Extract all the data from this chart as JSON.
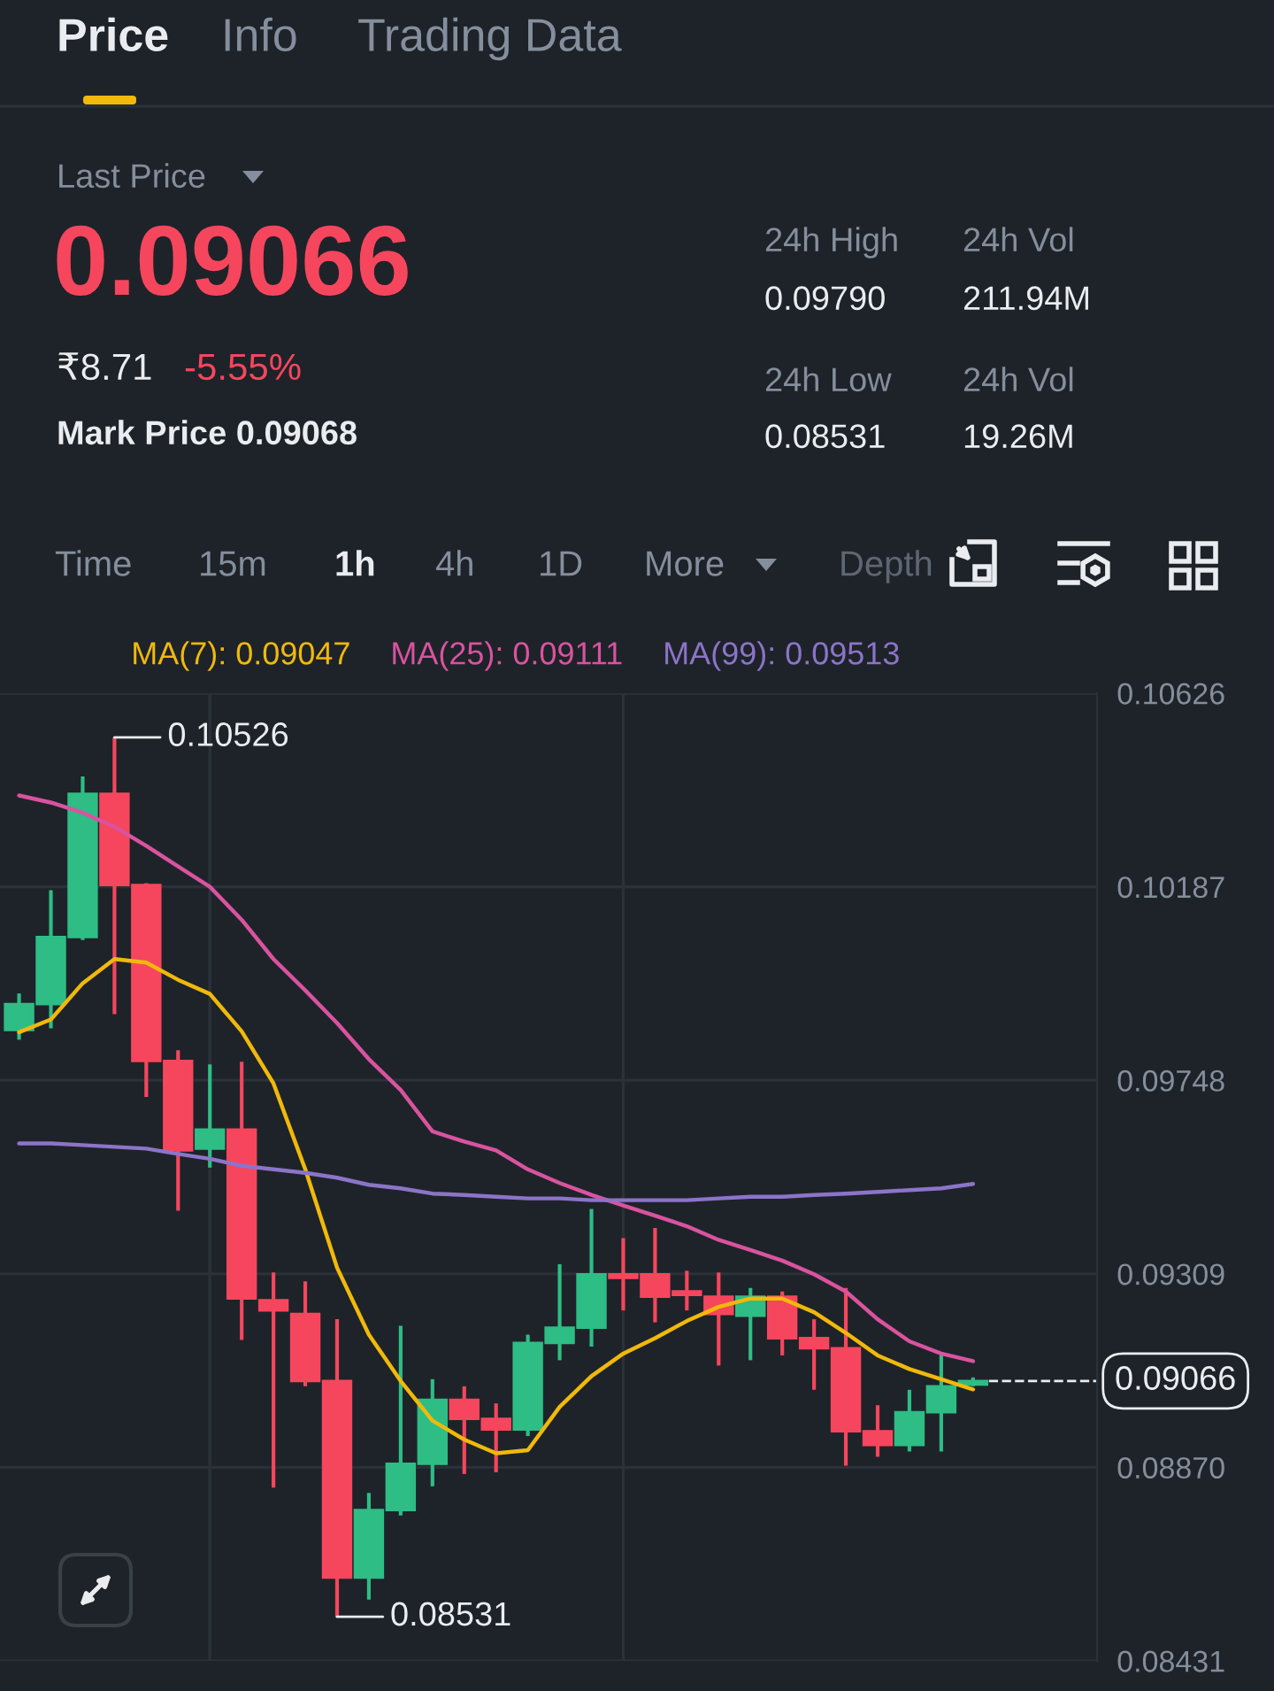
{
  "chart_data": {
    "type": "candlestick",
    "categories": [
      null,
      null,
      null,
      null,
      null,
      null,
      null,
      null,
      null,
      null,
      null,
      null,
      null,
      null,
      null,
      null,
      null,
      null,
      null,
      null,
      null,
      null,
      null,
      null,
      null,
      null,
      null,
      null,
      null,
      null,
      null
    ],
    "ohlc": [
      [
        0.09862,
        0.09945,
        0.0984,
        0.09921
      ],
      [
        0.09921,
        0.10179,
        0.09866,
        0.10073
      ],
      [
        0.10073,
        0.10437,
        0.10066,
        0.10398
      ],
      [
        0.10398,
        0.10526,
        0.09898,
        0.10191
      ],
      [
        0.10191,
        0.10195,
        0.0971,
        0.09792
      ],
      [
        0.09792,
        0.09816,
        0.09452,
        0.09589
      ],
      [
        0.09593,
        0.09784,
        0.0955,
        0.09636
      ],
      [
        0.09636,
        0.0979,
        0.09159,
        0.09253
      ],
      [
        0.09249,
        0.09312,
        0.08824,
        0.09226
      ],
      [
        0.09218,
        0.09292,
        0.09054,
        0.09066
      ],
      [
        0.09066,
        0.09206,
        0.08531,
        0.0862
      ],
      [
        0.0862,
        0.08812,
        0.0857,
        0.08773
      ],
      [
        0.08773,
        0.09191,
        0.08761,
        0.08878
      ],
      [
        0.08878,
        0.0907,
        0.08827,
        0.09023
      ],
      [
        0.09023,
        0.09054,
        0.08855,
        0.0898
      ],
      [
        0.0898,
        0.09015,
        0.08859,
        0.08956
      ],
      [
        0.08956,
        0.09171,
        0.08941,
        0.09152
      ],
      [
        0.09152,
        0.09331,
        0.09113,
        0.09187
      ],
      [
        0.09187,
        0.09456,
        0.09144,
        0.09308
      ],
      [
        0.09308,
        0.0939,
        0.09226,
        0.093
      ],
      [
        0.09308,
        0.09413,
        0.09199,
        0.09257
      ],
      [
        0.09269,
        0.09316,
        0.09226,
        0.09261
      ],
      [
        0.09257,
        0.09312,
        0.09101,
        0.09218
      ],
      [
        0.09214,
        0.09277,
        0.09113,
        0.09257
      ],
      [
        0.09257,
        0.09269,
        0.09124,
        0.09163
      ],
      [
        0.09163,
        0.09206,
        0.09046,
        0.0914
      ],
      [
        0.0914,
        0.09277,
        0.08874,
        0.08952
      ],
      [
        0.08952,
        0.09011,
        0.08894,
        0.08921
      ],
      [
        0.08921,
        0.09046,
        0.08906,
        0.08995
      ],
      [
        0.08995,
        0.09124,
        0.08906,
        0.09054
      ],
      [
        0.09058,
        0.09074,
        0.09054,
        0.09066
      ]
    ],
    "colors": [
      "#2ebd85",
      "#2ebd85",
      "#2ebd85",
      "#f6465d",
      "#f6465d",
      "#f6465d",
      "#2ebd85",
      "#f6465d",
      "#f6465d",
      "#f6465d",
      "#f6465d",
      "#2ebd85",
      "#2ebd85",
      "#2ebd85",
      "#f6465d",
      "#f6465d",
      "#2ebd85",
      "#2ebd85",
      "#2ebd85",
      "#f6465d",
      "#f6465d",
      "#f6465d",
      "#f6465d",
      "#2ebd85",
      "#f6465d",
      "#f6465d",
      "#f6465d",
      "#f6465d",
      "#2ebd85",
      "#2ebd85",
      "#2ebd85"
    ],
    "series": [
      {
        "name": "MA(7): 0.09047",
        "type": "line",
        "color": "#f0b90b",
        "values": [
          0.09857,
          0.09886,
          0.09968,
          0.10023,
          0.10015,
          0.09976,
          0.09944,
          0.09859,
          0.09741,
          0.09546,
          0.09323,
          0.09171,
          0.09066,
          0.08976,
          0.08933,
          0.08902,
          0.08909,
          0.09007,
          0.09077,
          0.09128,
          0.09163,
          0.09202,
          0.09234,
          0.09253,
          0.09253,
          0.09222,
          0.09175,
          0.09124,
          0.09093,
          0.0907,
          0.09047
        ]
      },
      {
        "name": "MA(25): 0.09111",
        "type": "line",
        "color": "#d9539f",
        "values": [
          0.10394,
          0.10378,
          0.10355,
          0.10323,
          0.1028,
          0.10233,
          0.10187,
          0.10112,
          0.10023,
          0.09952,
          0.09878,
          0.09796,
          0.09726,
          0.09632,
          0.09609,
          0.09589,
          0.09546,
          0.09515,
          0.09488,
          0.09464,
          0.09441,
          0.09417,
          0.09386,
          0.09363,
          0.09339,
          0.09308,
          0.09269,
          0.09206,
          0.09156,
          0.09128,
          0.09111
        ]
      },
      {
        "name": "MA(99): 0.09513",
        "type": "line",
        "color": "#8c74c9",
        "values": [
          0.09605,
          0.09605,
          0.09601,
          0.09597,
          0.09593,
          0.09581,
          0.0957,
          0.09554,
          0.09546,
          0.09538,
          0.09527,
          0.09511,
          0.09503,
          0.09491,
          0.09488,
          0.09484,
          0.0948,
          0.0948,
          0.09476,
          0.09476,
          0.09476,
          0.09476,
          0.0948,
          0.09484,
          0.09484,
          0.09488,
          0.09491,
          0.09495,
          0.09499,
          0.09503,
          0.09513
        ]
      }
    ],
    "ylim": [
      0.08431,
      0.10626
    ],
    "yticks": [
      0.08431,
      {
        "value": 0.0887,
        "label": "0.08870"
      },
      0.09309,
      0.09748,
      0.10187,
      0.10626
    ],
    "grid": "y",
    "legend": "top",
    "ref_lines": [
      {
        "axis": "y",
        "value": 0.09066,
        "label": "0.09066",
        "line_style": "dashed",
        "color": "#eaecef"
      }
    ],
    "annotations": [
      "Price",
      "Info",
      "Trading Data",
      "Last Price",
      "0.09066",
      "₹8.71",
      "-5.55%",
      "Mark Price 0.09068",
      "24h High",
      "24h Vol",
      "0.09790",
      "211.94M",
      "24h Low",
      "24h Vol",
      "0.08531",
      "19.26M",
      "Time",
      "15m",
      "1h",
      "4h",
      "1D",
      "More",
      "Depth",
      "0.10526",
      "0.08531"
    ]
  }
}
